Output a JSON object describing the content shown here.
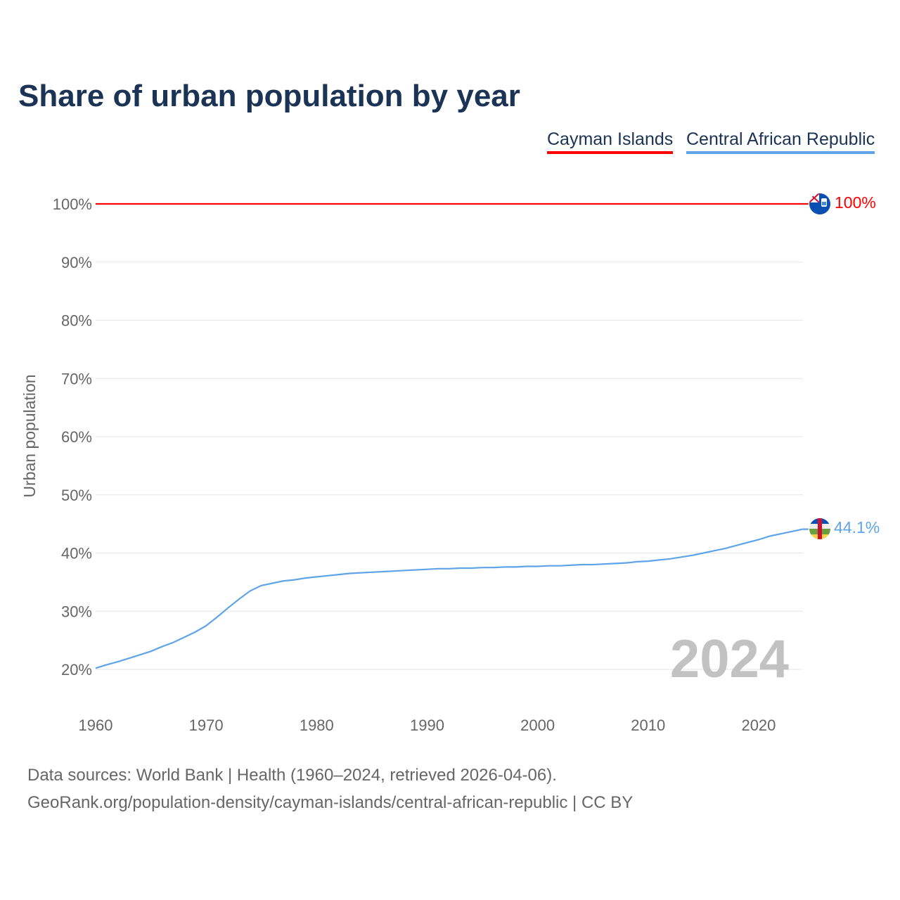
{
  "chart_data": {
    "type": "line",
    "title": "Share of urban population by year",
    "ylabel": "Urban population",
    "xlabel": "",
    "xlim": [
      1960,
      2024
    ],
    "ylim": [
      20,
      100
    ],
    "x_ticks": [
      "1960",
      "1970",
      "1980",
      "1990",
      "2000",
      "2010",
      "2020"
    ],
    "y_ticks": [
      "20%",
      "30%",
      "40%",
      "50%",
      "60%",
      "70%",
      "80%",
      "90%",
      "100%"
    ],
    "grid": true,
    "legend_position": "top-right",
    "watermark_year": "2024",
    "x": [
      1960,
      1961,
      1962,
      1963,
      1964,
      1965,
      1966,
      1967,
      1968,
      1969,
      1970,
      1971,
      1972,
      1973,
      1974,
      1975,
      1976,
      1977,
      1978,
      1979,
      1980,
      1981,
      1982,
      1983,
      1984,
      1985,
      1986,
      1987,
      1988,
      1989,
      1990,
      1991,
      1992,
      1993,
      1994,
      1995,
      1996,
      1997,
      1998,
      1999,
      2000,
      2001,
      2002,
      2003,
      2004,
      2005,
      2006,
      2007,
      2008,
      2009,
      2010,
      2011,
      2012,
      2013,
      2014,
      2015,
      2016,
      2017,
      2018,
      2019,
      2020,
      2021,
      2022,
      2023,
      2024
    ],
    "series": [
      {
        "name": "Cayman Islands",
        "color": "#ff0000",
        "end_label": "100%",
        "values": [
          100,
          100,
          100,
          100,
          100,
          100,
          100,
          100,
          100,
          100,
          100,
          100,
          100,
          100,
          100,
          100,
          100,
          100,
          100,
          100,
          100,
          100,
          100,
          100,
          100,
          100,
          100,
          100,
          100,
          100,
          100,
          100,
          100,
          100,
          100,
          100,
          100,
          100,
          100,
          100,
          100,
          100,
          100,
          100,
          100,
          100,
          100,
          100,
          100,
          100,
          100,
          100,
          100,
          100,
          100,
          100,
          100,
          100,
          100,
          100,
          100,
          100,
          100,
          100,
          100
        ]
      },
      {
        "name": "Central African Republic",
        "color": "#5fa4e8",
        "end_label": "44.1%",
        "values": [
          20.2,
          20.8,
          21.3,
          21.9,
          22.5,
          23.1,
          23.9,
          24.6,
          25.5,
          26.4,
          27.5,
          29.0,
          30.6,
          32.1,
          33.5,
          34.4,
          34.8,
          35.2,
          35.4,
          35.7,
          35.9,
          36.1,
          36.3,
          36.5,
          36.6,
          36.7,
          36.8,
          36.9,
          37.0,
          37.1,
          37.2,
          37.3,
          37.3,
          37.4,
          37.4,
          37.5,
          37.5,
          37.6,
          37.6,
          37.7,
          37.7,
          37.8,
          37.8,
          37.9,
          38.0,
          38.0,
          38.1,
          38.2,
          38.3,
          38.5,
          38.6,
          38.8,
          39.0,
          39.3,
          39.6,
          40.0,
          40.4,
          40.8,
          41.3,
          41.8,
          42.3,
          42.9,
          43.3,
          43.7,
          44.1
        ]
      }
    ]
  },
  "footer": {
    "line1": "Data sources: World Bank | Health (1960–2024, retrieved 2026-04-06).",
    "line2": "GeoRank.org/population-density/cayman-islands/central-african-republic | CC BY"
  }
}
